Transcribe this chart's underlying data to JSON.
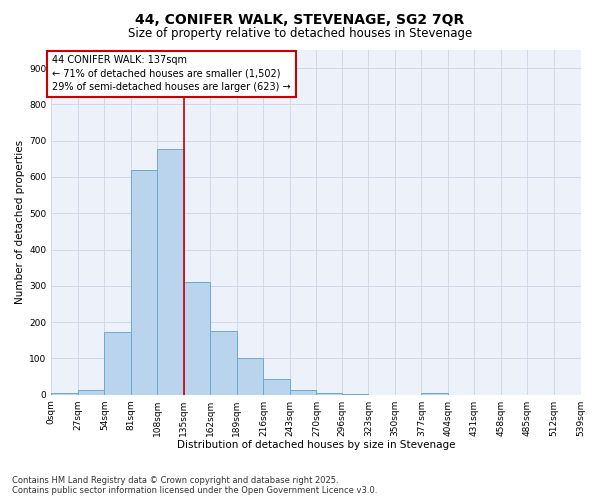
{
  "title_line1": "44, CONIFER WALK, STEVENAGE, SG2 7QR",
  "title_line2": "Size of property relative to detached houses in Stevenage",
  "xlabel": "Distribution of detached houses by size in Stevenage",
  "ylabel": "Number of detached properties",
  "bar_color": "#bad4ed",
  "bar_edge_color": "#6aaad4",
  "bins": [
    0,
    27,
    54,
    81,
    108,
    135,
    162,
    189,
    216,
    243,
    270,
    296,
    323,
    350,
    377,
    404,
    431,
    458,
    485,
    512,
    539
  ],
  "bin_labels": [
    "0sqm",
    "27sqm",
    "54sqm",
    "81sqm",
    "108sqm",
    "135sqm",
    "162sqm",
    "189sqm",
    "216sqm",
    "243sqm",
    "270sqm",
    "296sqm",
    "323sqm",
    "350sqm",
    "377sqm",
    "404sqm",
    "431sqm",
    "458sqm",
    "485sqm",
    "512sqm",
    "539sqm"
  ],
  "values": [
    5,
    12,
    172,
    618,
    678,
    310,
    175,
    100,
    42,
    13,
    5,
    3,
    0,
    0,
    4,
    0,
    0,
    0,
    0,
    0
  ],
  "vline_x": 135,
  "annotation_text_line1": "44 CONIFER WALK: 137sqm",
  "annotation_text_line2": "← 71% of detached houses are smaller (1,502)",
  "annotation_text_line3": "29% of semi-detached houses are larger (623) →",
  "vline_color": "#cc0000",
  "annotation_box_color": "#cc0000",
  "grid_color": "#ccd8e8",
  "background_color": "#edf2fa",
  "yticks": [
    0,
    100,
    200,
    300,
    400,
    500,
    600,
    700,
    800,
    900
  ],
  "ylim": [
    0,
    950
  ],
  "footer_line1": "Contains HM Land Registry data © Crown copyright and database right 2025.",
  "footer_line2": "Contains public sector information licensed under the Open Government Licence v3.0.",
  "title_fontsize": 10,
  "subtitle_fontsize": 8.5,
  "axis_label_fontsize": 7.5,
  "tick_fontsize": 6.5,
  "annotation_fontsize": 7,
  "footer_fontsize": 6
}
